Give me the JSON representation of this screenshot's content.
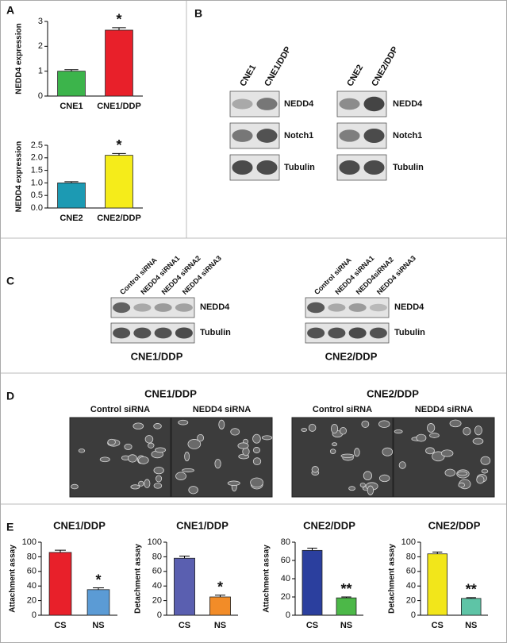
{
  "panel_labels": [
    "A",
    "B",
    "C",
    "D",
    "E"
  ],
  "chart_data": [
    {
      "type": "bar",
      "y_label": "NEDD4 expression",
      "categories": [
        "CNE1",
        "CNE1/DDP"
      ],
      "values": [
        1.0,
        2.65
      ],
      "errors": [
        0.06,
        0.1
      ],
      "colors": [
        "#3cb44b",
        "#e8202a"
      ],
      "annotation": "*",
      "ylim": [
        0,
        3
      ],
      "yticks": [
        0,
        1,
        2,
        3
      ]
    },
    {
      "type": "bar",
      "y_label": "NEDD4 expression",
      "categories": [
        "CNE2",
        "CNE2/DDP"
      ],
      "values": [
        1.0,
        2.1
      ],
      "errors": [
        0.05,
        0.07
      ],
      "colors": [
        "#1c9ab3",
        "#f5ec1a"
      ],
      "annotation": "*",
      "ylim": [
        0,
        2.5
      ],
      "yticks": [
        {
          "value": 0,
          "label": "0.0"
        },
        0.5,
        {
          "value": 1,
          "label": "1.0"
        },
        1.5,
        {
          "value": 2,
          "label": "2.0"
        },
        2.5
      ]
    },
    {
      "type": "bar",
      "title": "CNE1/DDP",
      "y_label": "Attachment assay",
      "categories": [
        "CS",
        "NS"
      ],
      "values": [
        86,
        35
      ],
      "errors": [
        3,
        2.5
      ],
      "colors": [
        "#e8202a",
        "#5b9bd5"
      ],
      "annotation": "*",
      "ylim": [
        0,
        100
      ],
      "yticks": [
        0,
        20,
        40,
        60,
        80,
        100
      ]
    },
    {
      "type": "bar",
      "title": "CNE1/DDP",
      "y_label": "Detachment assay",
      "categories": [
        "CS",
        "NS"
      ],
      "values": [
        78,
        25
      ],
      "errors": [
        3,
        2.5
      ],
      "colors": [
        "#5a5fb0",
        "#f28c28"
      ],
      "annotation": "*",
      "ylim": [
        0,
        100
      ],
      "yticks": [
        0,
        20,
        40,
        60,
        80,
        100
      ]
    },
    {
      "type": "bar",
      "title": "CNE2/DDP",
      "y_label": "Attachment assay",
      "categories": [
        "CS",
        "NS"
      ],
      "values": [
        71,
        19
      ],
      "errors": [
        2.5,
        1
      ],
      "colors": [
        "#2b3f9e",
        "#4cb848"
      ],
      "annotation": "**",
      "ylim": [
        0,
        80
      ],
      "yticks": [
        0,
        20,
        40,
        60,
        80
      ]
    },
    {
      "type": "bar",
      "title": "CNE2/DDP",
      "y_label": "Detachment assay",
      "categories": [
        "CS",
        "NS"
      ],
      "values": [
        84,
        23
      ],
      "errors": [
        2.5,
        1
      ],
      "colors": [
        "#f2e61a",
        "#5ec4a6"
      ],
      "annotation": "**",
      "ylim": [
        0,
        100
      ],
      "yticks": [
        0,
        20,
        40,
        60,
        80,
        100
      ]
    }
  ],
  "blot_b": {
    "groups": [
      {
        "lanes": [
          "CNE1",
          "CNE1/DDP"
        ],
        "rows": [
          "NEDD4",
          "Notch1",
          "Tubulin"
        ]
      },
      {
        "lanes": [
          "CNE2",
          "CNE2/DDP"
        ],
        "rows": [
          "NEDD4",
          "Notch1",
          "Tubulin"
        ]
      }
    ]
  },
  "blot_c": {
    "groups": [
      {
        "lanes": [
          "Control siRNA",
          "NEDD4 siRNA1",
          "NEDD4 siRNA2",
          "NEDD4 siRNA3"
        ],
        "rows": [
          "NEDD4",
          "Tubulin"
        ],
        "label": "CNE1/DDP"
      },
      {
        "lanes": [
          "Control siRNA",
          "NEDD4 siRNA1",
          "NEDD4siRNA2",
          "NEDD4 siRNA3"
        ],
        "rows": [
          "NEDD4",
          "Tubulin"
        ],
        "label": "CNE2/DDP"
      }
    ]
  },
  "micrographs": {
    "groups": [
      {
        "title": "CNE1/DDP",
        "images": [
          "Control siRNA",
          "NEDD4  siRNA"
        ]
      },
      {
        "title": "CNE2/DDP",
        "images": [
          "Control siRNA",
          "NEDD4  siRNA"
        ]
      }
    ]
  }
}
